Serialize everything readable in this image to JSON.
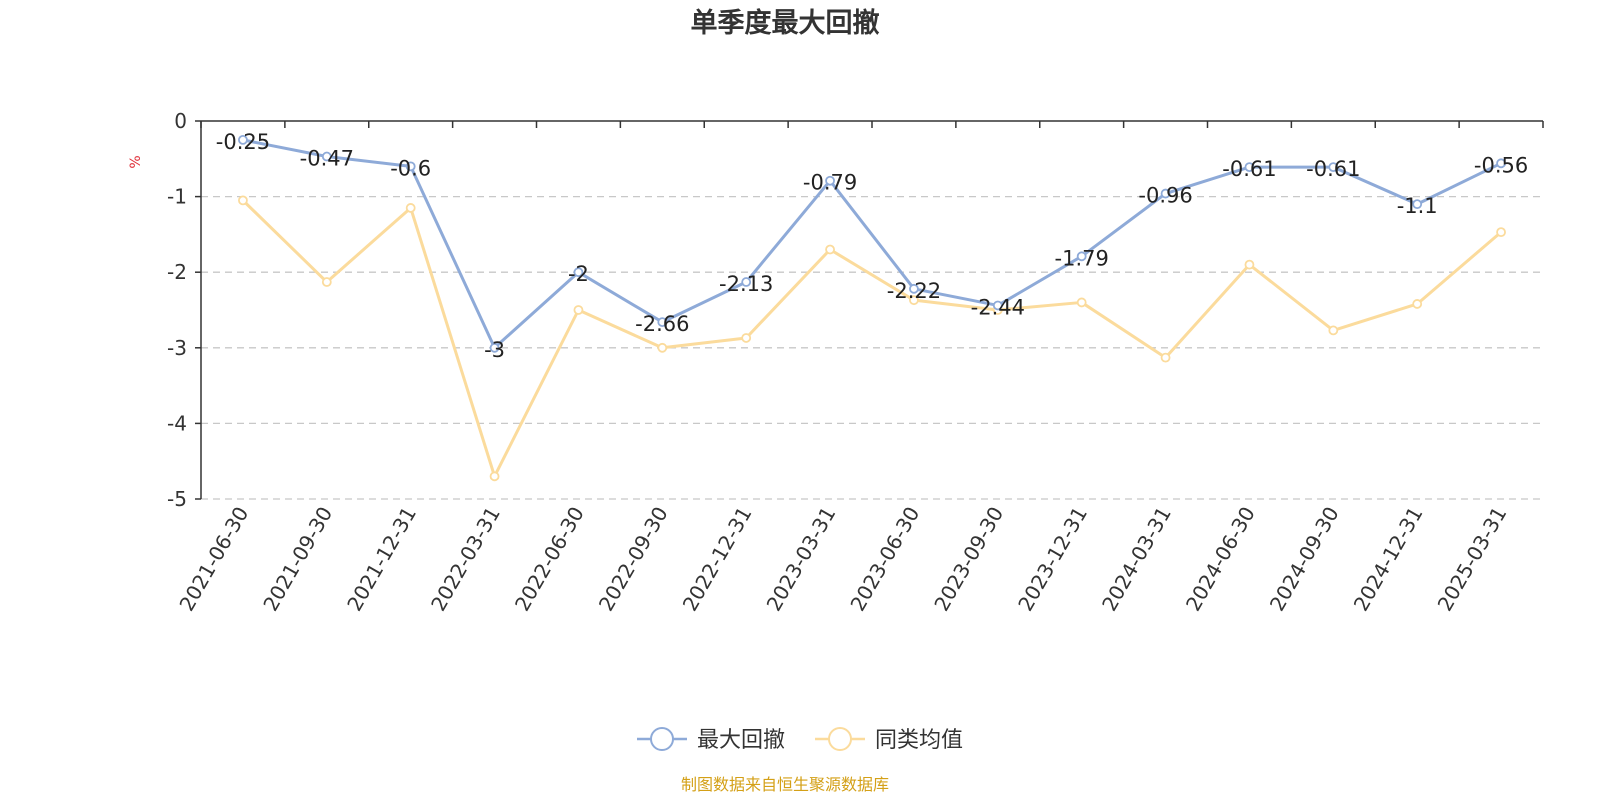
{
  "colors": {
    "series_1": "#8eaad8",
    "series_2": "#fbdb9c",
    "axis": "#333333",
    "grid": "#c8c8c8",
    "unit": "#e0303a",
    "source": "#d4a017"
  },
  "source_note": "制图数据来自恒生聚源数据库",
  "chart_data": {
    "type": "line",
    "title": "单季度最大回撤",
    "ylabel": "%",
    "xlabel": "",
    "ylim": [
      -5,
      0
    ],
    "yticks": [
      0,
      -1,
      -2,
      -3,
      -4,
      -5
    ],
    "grid": true,
    "legend_position": "bottom-center",
    "categories": [
      "2021-06-30",
      "2021-09-30",
      "2021-12-31",
      "2022-03-31",
      "2022-06-30",
      "2022-09-30",
      "2022-12-31",
      "2023-03-31",
      "2023-06-30",
      "2023-09-30",
      "2023-12-31",
      "2024-03-31",
      "2024-06-30",
      "2024-09-30",
      "2024-12-31",
      "2025-03-31"
    ],
    "series": [
      {
        "name": "最大回撤",
        "values": [
          -0.25,
          -0.47,
          -0.6,
          -3,
          -2,
          -2.66,
          -2.13,
          -0.79,
          -2.22,
          -2.44,
          -1.79,
          -0.96,
          -0.61,
          -0.61,
          -1.1,
          -0.56
        ],
        "labels": [
          "-0.25",
          "-0.47",
          "-0.6",
          "-3",
          "-2",
          "-2.66",
          "-2.13",
          "-0.79",
          "-2.22",
          "-2.44",
          "-1.79",
          "-0.96",
          "-0.61",
          "-0.61",
          "-1.1",
          "-0.56"
        ]
      },
      {
        "name": "同类均值",
        "values": [
          -1.05,
          -2.13,
          -1.15,
          -4.7,
          -2.5,
          -3.0,
          -2.87,
          -1.7,
          -2.37,
          -2.5,
          -2.4,
          -3.13,
          -1.9,
          -2.77,
          -2.42,
          -1.47
        ]
      }
    ]
  }
}
